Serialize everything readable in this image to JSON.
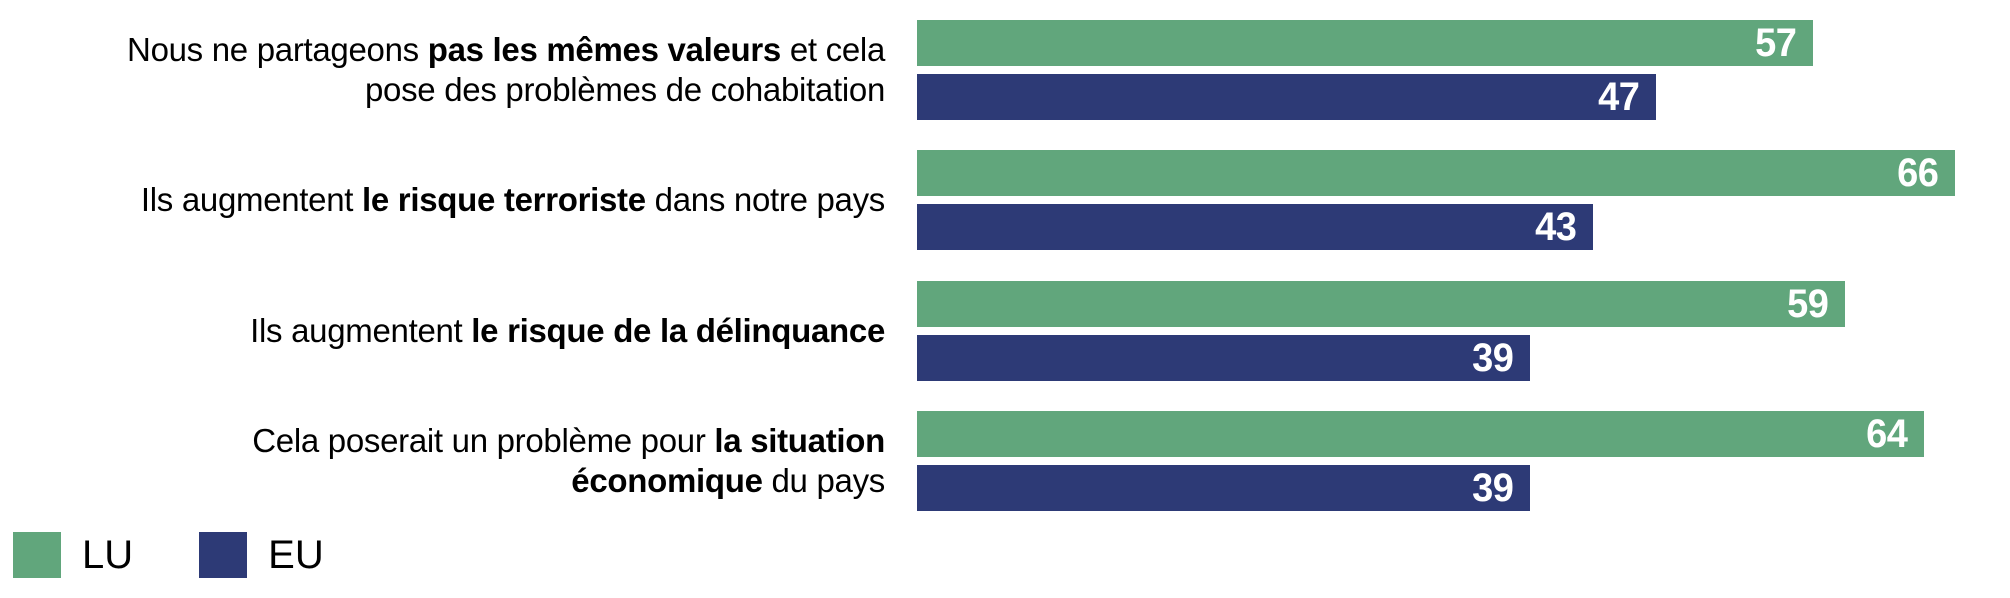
{
  "chart_data": {
    "type": "bar",
    "orientation": "horizontal",
    "title": "",
    "xlabel": "",
    "ylabel": "",
    "grid": false,
    "xlim": [
      0,
      69.5
    ],
    "legend_position": "bottom-left",
    "value_label_color": "#ffffff",
    "categories": [
      "Nous ne partageons pas les mêmes valeurs et cela pose des problèmes de cohabitation",
      "Ils augmentent le risque terroriste dans notre pays",
      "Ils augmentent le risque de la délinquance",
      "Cela poserait un problème pour la situation économique du pays"
    ],
    "categories_rich": [
      [
        [
          {
            "t": "Nous ne partageons ",
            "b": false
          },
          {
            "t": "pas les mêmes valeurs",
            "b": true
          },
          {
            "t": " et cela",
            "b": false
          }
        ],
        [
          {
            "t": "pose des problèmes de cohabitation",
            "b": false
          }
        ]
      ],
      [
        [
          {
            "t": "Ils augmentent ",
            "b": false
          },
          {
            "t": "le risque terroriste",
            "b": true
          },
          {
            "t": " dans notre pays",
            "b": false
          }
        ]
      ],
      [
        [
          {
            "t": "Ils augmentent ",
            "b": false
          },
          {
            "t": "le risque de la délinquance",
            "b": true
          }
        ]
      ],
      [
        [
          {
            "t": "Cela poserait un problème pour ",
            "b": false
          },
          {
            "t": "la situation",
            "b": true
          }
        ],
        [
          {
            "t": "économique",
            "b": true
          },
          {
            "t": " du pays",
            "b": false
          }
        ]
      ]
    ],
    "series": [
      {
        "name": "LU",
        "color": "#61a67c",
        "values": [
          57,
          66,
          59,
          64
        ]
      },
      {
        "name": "EU",
        "color": "#2d3a76",
        "values": [
          47,
          43,
          39,
          39
        ]
      }
    ]
  }
}
